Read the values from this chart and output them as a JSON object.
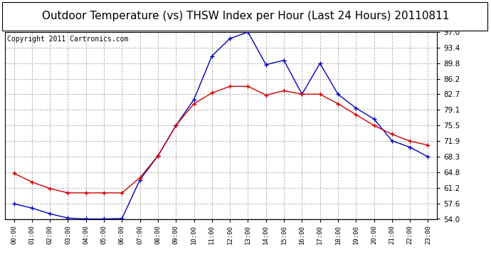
{
  "title": "Outdoor Temperature (vs) THSW Index per Hour (Last 24 Hours) 20110811",
  "copyright": "Copyright 2011 Cartronics.com",
  "x_labels": [
    "00:00",
    "01:00",
    "02:00",
    "03:00",
    "04:00",
    "05:00",
    "06:00",
    "07:00",
    "08:00",
    "09:00",
    "10:00",
    "11:00",
    "12:00",
    "13:00",
    "14:00",
    "15:00",
    "16:00",
    "17:00",
    "18:00",
    "19:00",
    "20:00",
    "21:00",
    "22:00",
    "23:00"
  ],
  "thsw_blue": [
    57.5,
    56.5,
    55.2,
    54.2,
    54.0,
    54.0,
    54.1,
    63.0,
    68.5,
    75.5,
    81.5,
    91.5,
    95.5,
    97.0,
    89.5,
    90.5,
    82.7,
    89.8,
    82.7,
    79.5,
    77.0,
    72.0,
    70.5,
    68.3
  ],
  "temp_red": [
    64.5,
    62.5,
    61.0,
    60.0,
    60.0,
    60.0,
    60.0,
    63.5,
    68.5,
    75.5,
    80.5,
    83.0,
    84.5,
    84.5,
    82.5,
    83.5,
    82.7,
    82.7,
    80.5,
    78.0,
    75.5,
    73.5,
    71.9,
    71.0
  ],
  "ylim": [
    54.0,
    97.0
  ],
  "yticks": [
    54.0,
    57.6,
    61.2,
    64.8,
    68.3,
    71.9,
    75.5,
    79.1,
    82.7,
    86.2,
    89.8,
    93.4,
    97.0
  ],
  "bg_color": "#ffffff",
  "plot_bg_color": "#ffffff",
  "grid_color": "#b0b0b0",
  "blue_color": "#0000bb",
  "red_color": "#cc0000",
  "title_color": "#000000",
  "title_fontsize": 11,
  "copyright_fontsize": 7
}
